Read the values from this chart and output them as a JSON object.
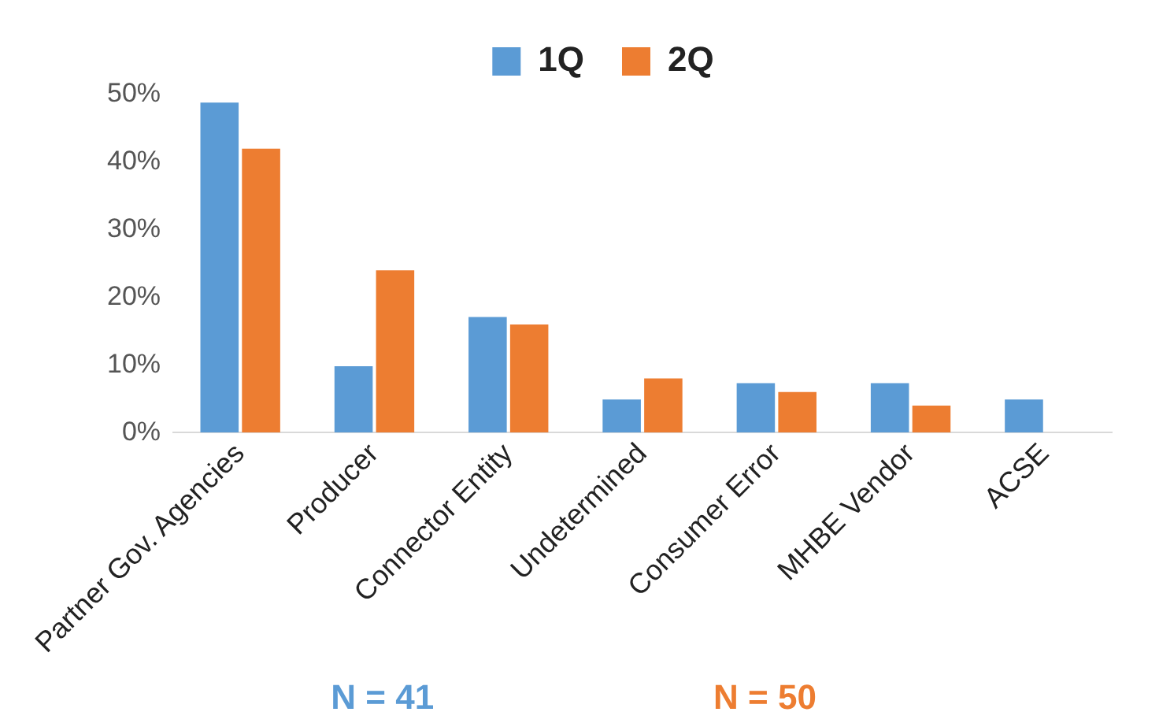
{
  "chart_data": {
    "type": "bar",
    "categories": [
      "Partner Gov. Agencies",
      "Producer",
      "Connector Entity",
      "Undetermined",
      "Consumer Error",
      "MHBE Vendor",
      "ACSE"
    ],
    "series": [
      {
        "name": "1Q",
        "color": "#5b9bd5",
        "values": [
          48.8,
          9.8,
          17.1,
          4.9,
          7.3,
          7.3,
          4.9
        ]
      },
      {
        "name": "2Q",
        "color": "#ed7d31",
        "values": [
          42,
          24,
          16,
          8,
          6,
          4,
          0
        ]
      }
    ],
    "ylim": [
      0,
      50
    ],
    "yticks": [
      {
        "value": 0,
        "label": "0%"
      },
      {
        "value": 10,
        "label": "10%"
      },
      {
        "value": 20,
        "label": "20%"
      },
      {
        "value": 30,
        "label": "30%"
      },
      {
        "value": 40,
        "label": "40%"
      },
      {
        "value": 50,
        "label": "50%"
      }
    ],
    "grid": false,
    "legend": "top",
    "annotations": [
      "N = 41",
      "N = 50"
    ]
  }
}
